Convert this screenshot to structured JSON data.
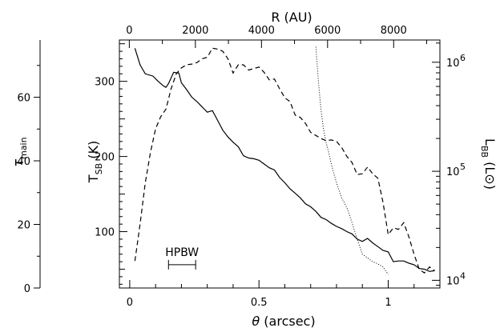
{
  "chart_data": {
    "type": "line",
    "axes": {
      "bottom": {
        "label_symbol": "θ",
        "label_rest": " (arcsec)",
        "range": [
          -0.04,
          1.2
        ],
        "ticks": [
          0,
          0.5,
          1
        ],
        "tick_labels": [
          "0",
          "0.5",
          "1"
        ]
      },
      "top": {
        "label": "R (AU)",
        "range": [
          -300,
          9400
        ],
        "ticks": [
          0,
          2000,
          4000,
          6000,
          8000
        ],
        "tick_labels": [
          "0",
          "2000",
          "4000",
          "6000",
          "8000"
        ]
      },
      "left_inner": {
        "label_main": "T",
        "label_sub": "SB",
        "label_unit": " (K)",
        "range": [
          25,
          355
        ],
        "ticks": [
          100,
          200,
          300
        ],
        "tick_labels": [
          "100",
          "200",
          "300"
        ]
      },
      "left_outer": {
        "label_main": "τ",
        "label_sub": "main",
        "range": [
          0,
          78
        ],
        "ticks": [
          0,
          20,
          40,
          60
        ],
        "tick_labels": [
          "0",
          "20",
          "40",
          "60"
        ]
      },
      "right": {
        "label_main": "L",
        "label_sub": "BB",
        "label_unit_open": " (L",
        "label_unit_symbol": "⊙",
        "label_unit_close": ")",
        "scale": "log",
        "range": [
          8500,
          1600000
        ],
        "ticks": [
          10000,
          100000,
          1000000
        ],
        "tick_labels": [
          "10",
          "10",
          "10"
        ],
        "tick_exponents": [
          "4",
          "5",
          "6"
        ]
      }
    },
    "series": [
      {
        "style": "solid",
        "axis": "left_inner",
        "x": [
          0.02,
          0.04,
          0.06,
          0.09,
          0.11,
          0.13,
          0.14,
          0.15,
          0.17,
          0.19,
          0.2,
          0.22,
          0.24,
          0.26,
          0.28,
          0.3,
          0.32,
          0.34,
          0.36,
          0.38,
          0.4,
          0.42,
          0.44,
          0.46,
          0.48,
          0.5,
          0.52,
          0.54,
          0.56,
          0.58,
          0.6,
          0.62,
          0.64,
          0.66,
          0.68,
          0.7,
          0.72,
          0.74,
          0.76,
          0.78,
          0.8,
          0.82,
          0.84,
          0.86,
          0.88,
          0.9,
          0.92,
          0.94,
          0.96,
          0.98,
          1.0,
          1.02,
          1.04,
          1.06,
          1.08,
          1.1,
          1.12,
          1.14,
          1.16,
          1.18
        ],
        "y": [
          344,
          322,
          310,
          307,
          300,
          294,
          292,
          297,
          312,
          311,
          298,
          289,
          279,
          273,
          266,
          259,
          261,
          248,
          235,
          226,
          219,
          213,
          201,
          198,
          197,
          195,
          190,
          185,
          182,
          172,
          165,
          157,
          151,
          145,
          137,
          133,
          127,
          119,
          116,
          111,
          107,
          104,
          100,
          97,
          90,
          87,
          91,
          85,
          80,
          75,
          73,
          60,
          61,
          61,
          58,
          56,
          51,
          50,
          47,
          48
        ]
      },
      {
        "style": "dashed",
        "axis": "left_inner",
        "x": [
          0.02,
          0.04,
          0.06,
          0.08,
          0.1,
          0.12,
          0.14,
          0.16,
          0.18,
          0.2,
          0.22,
          0.24,
          0.26,
          0.28,
          0.3,
          0.32,
          0.34,
          0.36,
          0.38,
          0.4,
          0.42,
          0.44,
          0.46,
          0.48,
          0.5,
          0.52,
          0.54,
          0.56,
          0.58,
          0.6,
          0.62,
          0.64,
          0.66,
          0.68,
          0.7,
          0.72,
          0.74,
          0.76,
          0.78,
          0.8,
          0.82,
          0.84,
          0.86,
          0.88,
          0.9,
          0.92,
          0.94,
          0.96,
          0.98,
          1.0,
          1.02,
          1.04,
          1.06,
          1.08,
          1.1,
          1.12,
          1.14,
          1.16,
          1.18
        ],
        "y": [
          61,
          110,
          165,
          205,
          237,
          253,
          263,
          290,
          310,
          318,
          322,
          323,
          325,
          330,
          332,
          344,
          343,
          340,
          330,
          311,
          322,
          322,
          315,
          317,
          319,
          312,
          302,
          303,
          290,
          278,
          273,
          255,
          252,
          244,
          232,
          228,
          224,
          221,
          222,
          220,
          212,
          200,
          192,
          176,
          177,
          186,
          177,
          171,
          139,
          96,
          105,
          103,
          112,
          93,
          70,
          50,
          45,
          53,
          48
        ]
      },
      {
        "style": "dotted",
        "axis": "left_inner",
        "x": [
          0.72,
          0.73,
          0.74,
          0.75,
          0.76,
          0.77,
          0.78,
          0.79,
          0.8,
          0.82,
          0.84,
          0.86,
          0.88,
          0.9,
          0.92,
          0.94,
          0.96,
          0.98,
          1.0
        ],
        "y": [
          346,
          300,
          262,
          236,
          218,
          205,
          190,
          177,
          165,
          145,
          132,
          112,
          90,
          70,
          65,
          60,
          57,
          53,
          43
        ]
      }
    ],
    "annotations": [
      {
        "text": "HPBW",
        "x_range": [
          0.15,
          0.255
        ],
        "y": 56
      }
    ]
  }
}
